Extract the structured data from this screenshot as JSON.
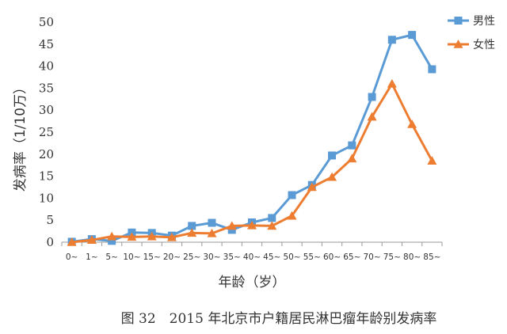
{
  "chart_data": {
    "type": "line",
    "categories": [
      "0~",
      "1~",
      "5~",
      "10~",
      "15~",
      "20~",
      "25~",
      "30~",
      "35~",
      "40~",
      "45~",
      "50~",
      "55~",
      "60~",
      "65~",
      "70~",
      "75~",
      "80~",
      "85~"
    ],
    "series": [
      {
        "name": "男性",
        "color": "#5b9bd5",
        "marker": "square",
        "values": [
          0.1,
          0.7,
          0.3,
          2.2,
          2.1,
          1.5,
          3.7,
          4.4,
          2.8,
          4.5,
          5.5,
          10.7,
          13.0,
          19.7,
          22.0,
          33.0,
          46.0,
          47.1,
          39.3
        ]
      },
      {
        "name": "女性",
        "color": "#ed7d31",
        "marker": "triangle",
        "values": [
          0.0,
          0.5,
          1.3,
          1.2,
          1.3,
          1.1,
          2.1,
          2.0,
          3.7,
          3.8,
          3.7,
          6.0,
          12.5,
          14.8,
          19.0,
          28.5,
          36.0,
          26.8,
          18.5
        ]
      }
    ],
    "ylim": [
      0,
      50
    ],
    "yticks": [
      0,
      5,
      10,
      15,
      20,
      25,
      30,
      35,
      40,
      45,
      50
    ],
    "xlabel": "年龄（岁）",
    "ylabel": "发病率（1/10万）",
    "legend_position": "top-right",
    "grid": false
  },
  "caption": "图 32　2015 年北京市户籍居民淋巴瘤年龄别发病率"
}
